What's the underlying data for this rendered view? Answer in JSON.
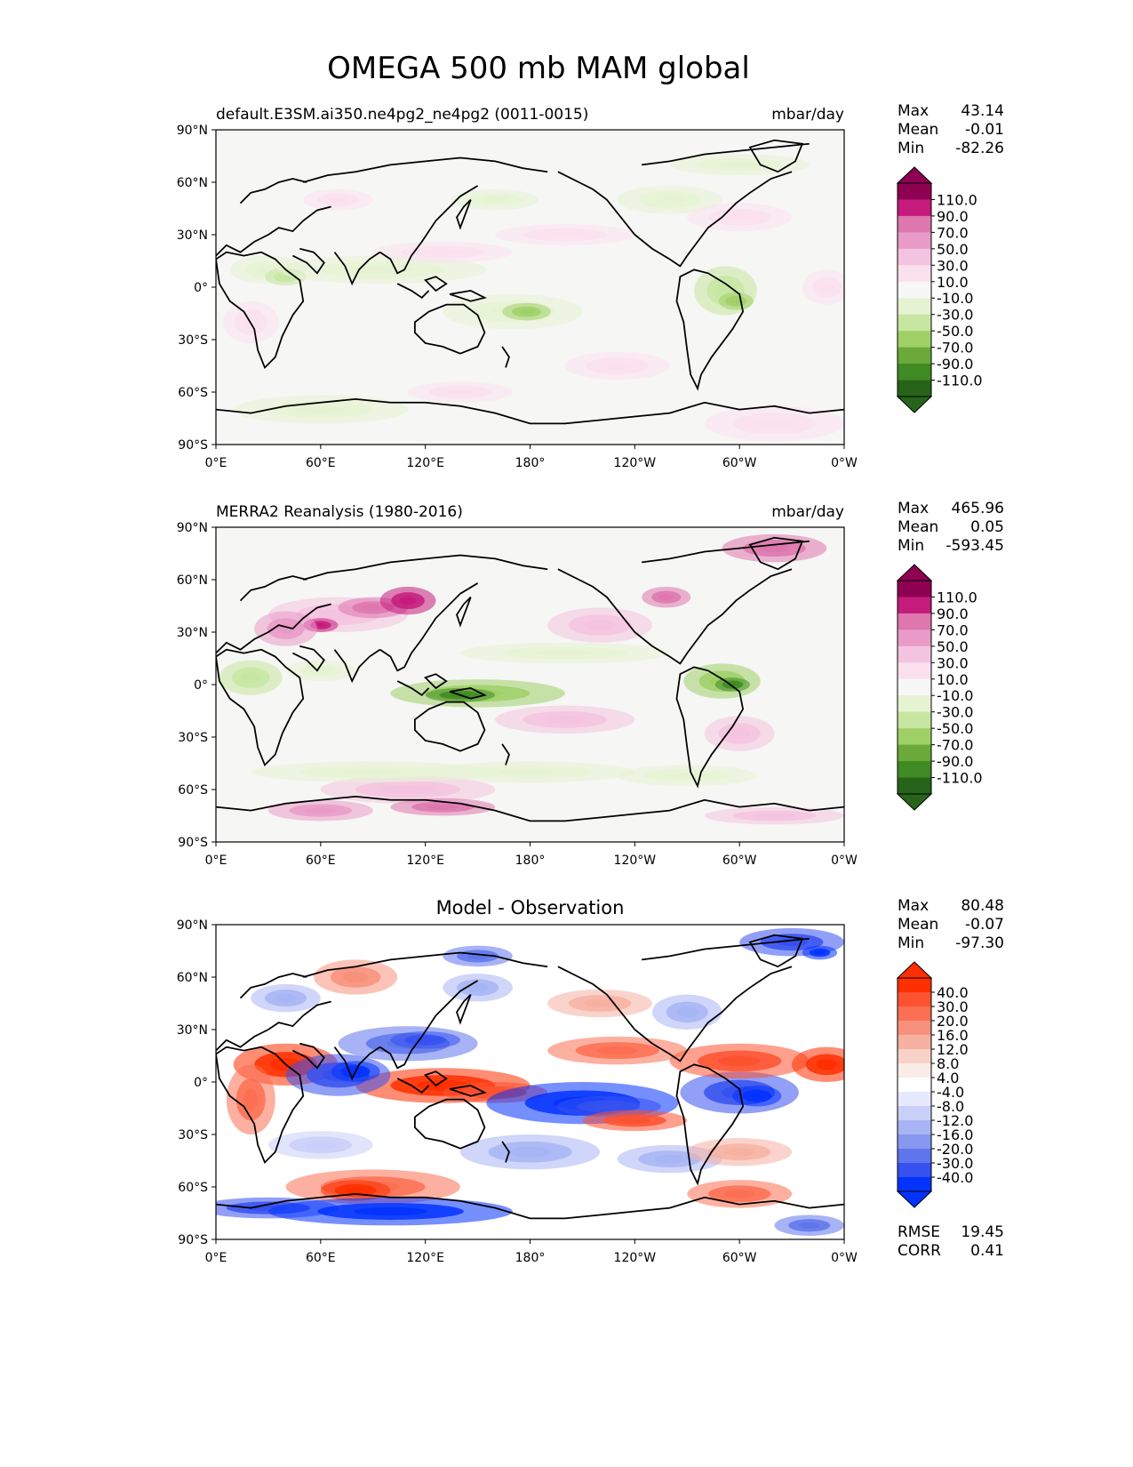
{
  "figure": {
    "title": "OMEGA 500 mb MAM global"
  },
  "x_ticks": [
    "0°E",
    "60°E",
    "120°E",
    "180°",
    "120°W",
    "60°W",
    "0°W"
  ],
  "y_ticks": [
    "90°N",
    "60°N",
    "30°N",
    "0°",
    "30°S",
    "60°S",
    "90°S"
  ],
  "panels": [
    {
      "id": "model",
      "title_left": "default.E3SM.ai350.ne4pg2_ne4pg2 (0011-0015)",
      "title_center": "",
      "units": "mbar/day",
      "stats": [
        {
          "label": "Max",
          "value": "43.14"
        },
        {
          "label": "Mean",
          "value": "-0.01"
        },
        {
          "label": "Min",
          "value": "-82.26"
        }
      ],
      "colorbar": "omega"
    },
    {
      "id": "obs",
      "title_left": "MERRA2 Reanalysis (1980-2016)",
      "title_center": "",
      "units": "mbar/day",
      "stats": [
        {
          "label": "Max",
          "value": "465.96"
        },
        {
          "label": "Mean",
          "value": "0.05"
        },
        {
          "label": "Min",
          "value": "-593.45"
        }
      ],
      "colorbar": "omega"
    },
    {
      "id": "diff",
      "title_left": "",
      "title_center": "Model - Observation",
      "units": "",
      "stats": [
        {
          "label": "Max",
          "value": "80.48"
        },
        {
          "label": "Mean",
          "value": "-0.07"
        },
        {
          "label": "Min",
          "value": "-97.30"
        }
      ],
      "extra_stats": [
        {
          "label": "RMSE",
          "value": "19.45"
        },
        {
          "label": "CORR",
          "value": "0.41"
        }
      ],
      "colorbar": "diff"
    }
  ],
  "colorbars": {
    "omega": {
      "labels": [
        "110.0",
        "90.0",
        "70.0",
        "50.0",
        "30.0",
        "10.0",
        "-10.0",
        "-30.0",
        "-50.0",
        "-70.0",
        "-90.0",
        "-110.0"
      ],
      "colors": [
        "#8e0152",
        "#c51b7d",
        "#de77ae",
        "#e99bc8",
        "#f4c3df",
        "#fbe1ee",
        "#f7f7f7",
        "#e6f3d3",
        "#c7e6a1",
        "#9fd068",
        "#6ba93a",
        "#3f8a22",
        "#276419"
      ],
      "over": "#8e0152",
      "under": "#276419"
    },
    "diff": {
      "labels": [
        "40.0",
        "30.0",
        "20.0",
        "16.0",
        "12.0",
        "8.0",
        "4.0",
        "-4.0",
        "-8.0",
        "-12.0",
        "-16.0",
        "-20.0",
        "-30.0",
        "-40.0"
      ],
      "colors": [
        "#fe2f00",
        "#fd5230",
        "#fb7052",
        "#f8917c",
        "#f6b1a2",
        "#f8d1c8",
        "#fbece7",
        "#ffffff",
        "#e6e9fc",
        "#c8cff8",
        "#a8b5f4",
        "#8698f0",
        "#5f75ec",
        "#3651f0",
        "#0433ff"
      ],
      "over": "#fe2f00",
      "under": "#0433ff"
    }
  },
  "chart_data": [
    {
      "type": "heatmap",
      "title": "default.E3SM.ai350.ne4pg2_ne4pg2 (0011-0015)",
      "units": "mbar/day",
      "xlabel": "",
      "ylabel": "",
      "xlim": [
        0,
        360
      ],
      "ylim": [
        -90,
        90
      ],
      "x_ticks": [
        0,
        60,
        120,
        180,
        240,
        300,
        360
      ],
      "y_ticks": [
        90,
        60,
        30,
        0,
        -30,
        -60,
        -90
      ],
      "levels": [
        -110,
        -90,
        -70,
        -50,
        -30,
        -10,
        10,
        30,
        50,
        70,
        90,
        110
      ],
      "max": 43.14,
      "mean": -0.01,
      "min": -82.26
    },
    {
      "type": "heatmap",
      "title": "MERRA2 Reanalysis (1980-2016)",
      "units": "mbar/day",
      "xlabel": "",
      "ylabel": "",
      "xlim": [
        0,
        360
      ],
      "ylim": [
        -90,
        90
      ],
      "x_ticks": [
        0,
        60,
        120,
        180,
        240,
        300,
        360
      ],
      "y_ticks": [
        90,
        60,
        30,
        0,
        -30,
        -60,
        -90
      ],
      "levels": [
        -110,
        -90,
        -70,
        -50,
        -30,
        -10,
        10,
        30,
        50,
        70,
        90,
        110
      ],
      "max": 465.96,
      "mean": 0.05,
      "min": -593.45
    },
    {
      "type": "heatmap",
      "title": "Model - Observation",
      "units": "",
      "xlabel": "",
      "ylabel": "",
      "xlim": [
        0,
        360
      ],
      "ylim": [
        -90,
        90
      ],
      "x_ticks": [
        0,
        60,
        120,
        180,
        240,
        300,
        360
      ],
      "y_ticks": [
        90,
        60,
        30,
        0,
        -30,
        -60,
        -90
      ],
      "levels": [
        -40,
        -30,
        -20,
        -16,
        -12,
        -8,
        -4,
        4,
        8,
        12,
        16,
        20,
        30,
        40
      ],
      "max": 80.48,
      "mean": -0.07,
      "min": -97.3,
      "rmse": 19.45,
      "corr": 0.41
    }
  ]
}
